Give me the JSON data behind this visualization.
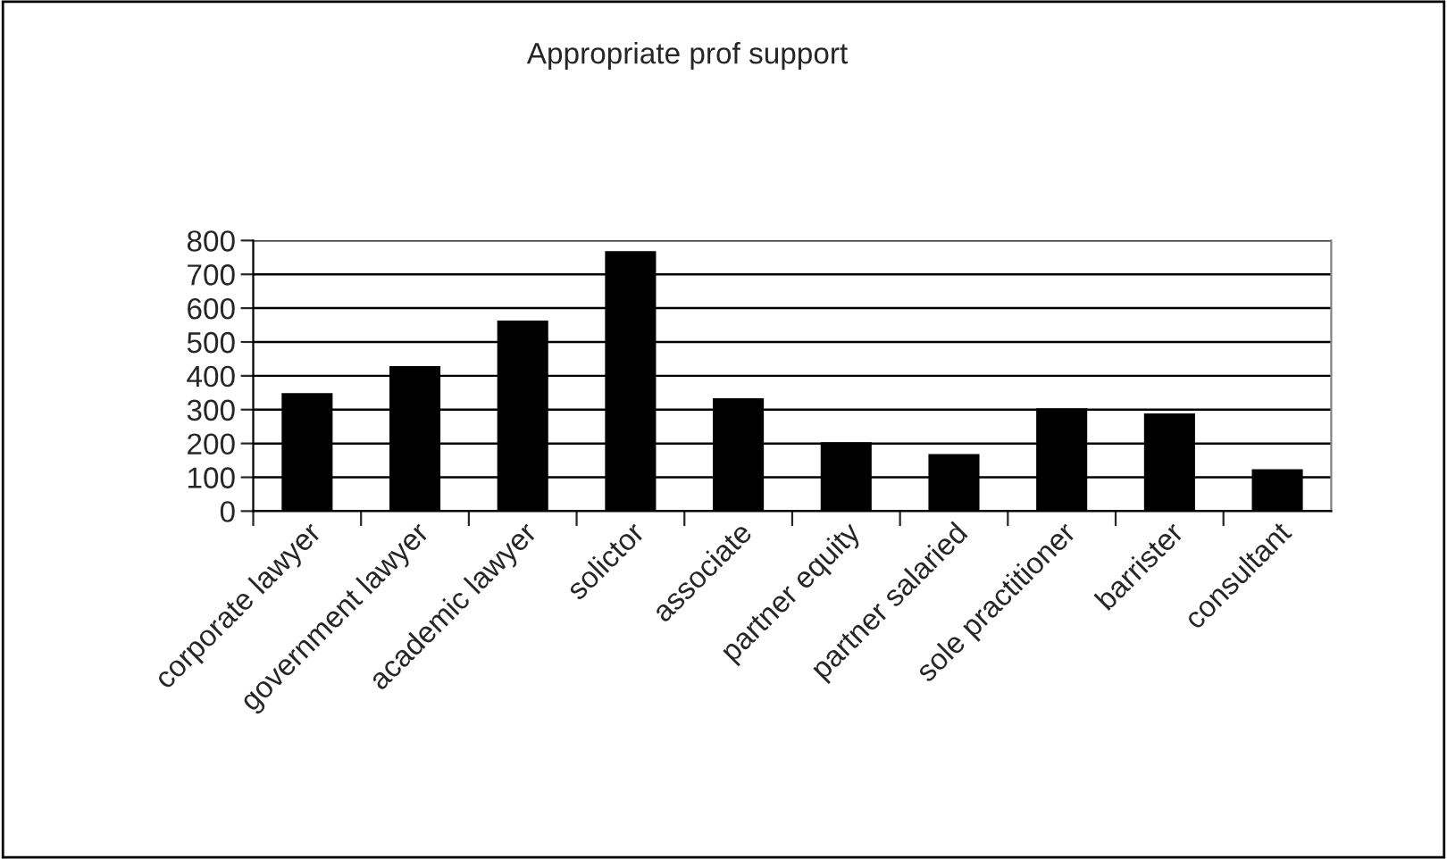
{
  "chart_data": {
    "type": "bar",
    "title": "Appropriate prof support",
    "categories": [
      "corporate lawyer",
      "government lawyer",
      "academic lawyer",
      "solictor",
      "associate",
      "partner equity",
      "partner salaried",
      "sole practitioner",
      "barrister",
      "consultant"
    ],
    "values": [
      345,
      425,
      560,
      765,
      330,
      200,
      165,
      300,
      285,
      120
    ],
    "color": "#000000",
    "ylim": [
      0,
      800
    ],
    "yticks": [
      0,
      100,
      200,
      300,
      400,
      500,
      600,
      700,
      800
    ],
    "grid": "y"
  }
}
